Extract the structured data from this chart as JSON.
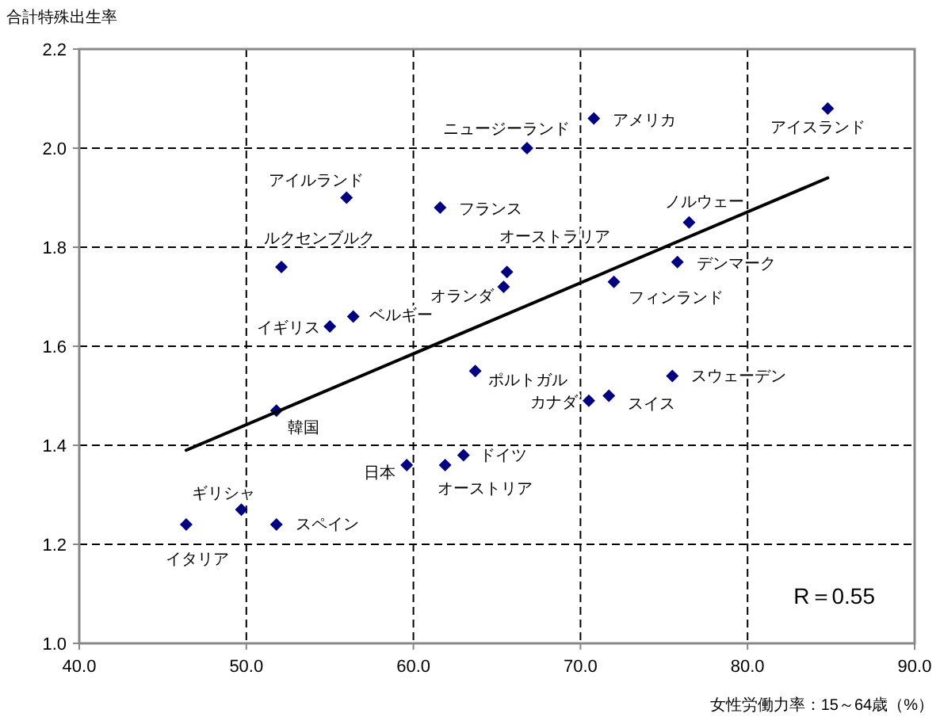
{
  "chart_data": {
    "type": "scatter",
    "ylabel": "合計特殊出生率",
    "xlabel": "女性労働力率：15～64歳（%）",
    "xlim": [
      40,
      90
    ],
    "xticks": [
      {
        "value": 40,
        "label": "40.0"
      },
      {
        "value": 50,
        "label": "50.0"
      },
      {
        "value": 60,
        "label": "60.0"
      },
      {
        "value": 70,
        "label": "70.0"
      },
      {
        "value": 80,
        "label": "80.0"
      },
      {
        "value": 90,
        "label": "90.0"
      }
    ],
    "ylim": [
      1.0,
      2.2
    ],
    "yticks": [
      {
        "value": 1.0,
        "label": "1.0"
      },
      {
        "value": 1.2,
        "label": "1.2"
      },
      {
        "value": 1.4,
        "label": "1.4"
      },
      {
        "value": 1.6,
        "label": "1.6"
      },
      {
        "value": 1.8,
        "label": "1.8"
      },
      {
        "value": 2.0,
        "label": "2.0"
      },
      {
        "value": 2.2,
        "label": "2.2"
      }
    ],
    "grid": true,
    "series": [
      {
        "marker": "diamond",
        "color": "#000080",
        "x": [
          84.8,
          70.8,
          66.8,
          76.5,
          75.8,
          72.0,
          65.6,
          65.4,
          56.0,
          61.6,
          52.1,
          56.4,
          55.0,
          63.7,
          51.8,
          59.6,
          61.9,
          63.0,
          49.7,
          51.8,
          46.4,
          75.5,
          70.5,
          71.7
        ],
        "values": [
          2.08,
          2.06,
          2.0,
          1.85,
          1.77,
          1.73,
          1.75,
          1.72,
          1.9,
          1.88,
          1.76,
          1.66,
          1.64,
          1.55,
          1.47,
          1.36,
          1.36,
          1.38,
          1.27,
          1.24,
          1.24,
          1.54,
          1.49,
          1.5
        ]
      },
      {
        "type": "line",
        "color": "#000000",
        "x": [
          46.4,
          84.8
        ],
        "values": [
          1.39,
          1.94
        ]
      }
    ],
    "annotations": [
      {
        "text": "アイスランド",
        "x": 84.8,
        "y": 2.08
      },
      {
        "text": "アメリカ",
        "x": 70.8,
        "y": 2.06
      },
      {
        "text": "ニュージーランド",
        "x": 66.8,
        "y": 2.0
      },
      {
        "text": "ノルウェー",
        "x": 76.5,
        "y": 1.85
      },
      {
        "text": "デンマーク",
        "x": 75.8,
        "y": 1.77
      },
      {
        "text": "フィンランド",
        "x": 72.0,
        "y": 1.73
      },
      {
        "text": "オーストラリア",
        "x": 65.6,
        "y": 1.75
      },
      {
        "text": "オランダ",
        "x": 65.4,
        "y": 1.72
      },
      {
        "text": "アイルランド",
        "x": 56.0,
        "y": 1.9
      },
      {
        "text": "フランス",
        "x": 61.6,
        "y": 1.88
      },
      {
        "text": "ルクセンブルク",
        "x": 52.1,
        "y": 1.76
      },
      {
        "text": "ベルギー",
        "x": 56.4,
        "y": 1.66
      },
      {
        "text": "イギリス",
        "x": 55.0,
        "y": 1.64
      },
      {
        "text": "ポルトガル",
        "x": 63.7,
        "y": 1.55
      },
      {
        "text": "韓国",
        "x": 51.8,
        "y": 1.47
      },
      {
        "text": "日本",
        "x": 59.6,
        "y": 1.36
      },
      {
        "text": "オーストリア",
        "x": 61.9,
        "y": 1.36
      },
      {
        "text": "ドイツ",
        "x": 63.0,
        "y": 1.38
      },
      {
        "text": "ギリシャ",
        "x": 49.7,
        "y": 1.27
      },
      {
        "text": "スペイン",
        "x": 51.8,
        "y": 1.24
      },
      {
        "text": "イタリア",
        "x": 46.4,
        "y": 1.24
      },
      {
        "text": "スウェーデン",
        "x": 75.5,
        "y": 1.54
      },
      {
        "text": "カナダ",
        "x": 70.5,
        "y": 1.49
      },
      {
        "text": "スイス",
        "x": 71.7,
        "y": 1.5
      },
      "R＝0.55"
    ]
  }
}
